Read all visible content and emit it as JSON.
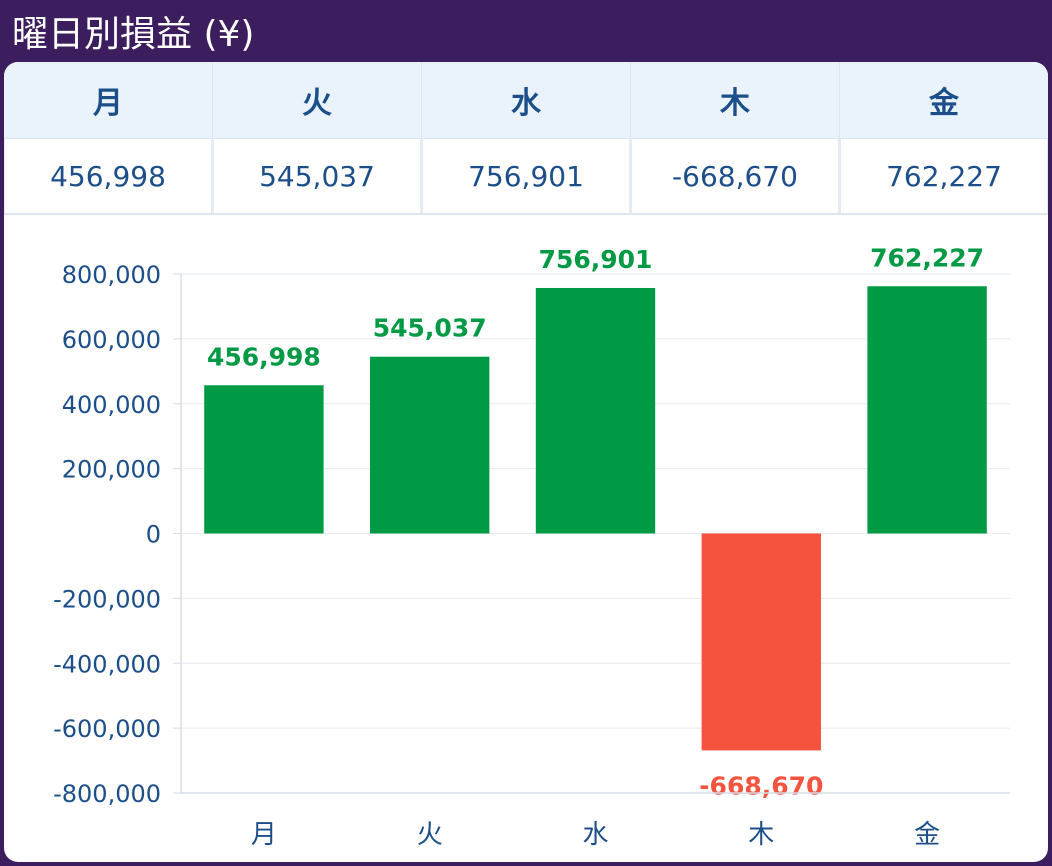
{
  "title": "曜日別損益 (¥)",
  "table": {
    "headers": [
      "月",
      "火",
      "水",
      "木",
      "金"
    ],
    "values": [
      "456,998",
      "545,037",
      "756,901",
      "-668,670",
      "762,227"
    ]
  },
  "colors": {
    "positive": "#009944",
    "negative": "#f5533d",
    "text": "#1c4f8a"
  },
  "chart_data": {
    "type": "bar",
    "categories": [
      "月",
      "火",
      "水",
      "木",
      "金"
    ],
    "values": [
      456998,
      545037,
      756901,
      -668670,
      762227
    ],
    "data_labels": [
      "456,998",
      "545,037",
      "756,901",
      "-668,670",
      "762,227"
    ],
    "title": "",
    "xlabel": "",
    "ylabel": "",
    "ylim": [
      -800000,
      800000
    ],
    "yticks": [
      800000,
      600000,
      400000,
      200000,
      0,
      -200000,
      -400000,
      -600000,
      -800000
    ],
    "ytick_labels": [
      "800,000",
      "600,000",
      "400,000",
      "200,000",
      "0",
      "-200,000",
      "-400,000",
      "-600,000",
      "-800,000"
    ],
    "grid": true,
    "legend": "none"
  }
}
